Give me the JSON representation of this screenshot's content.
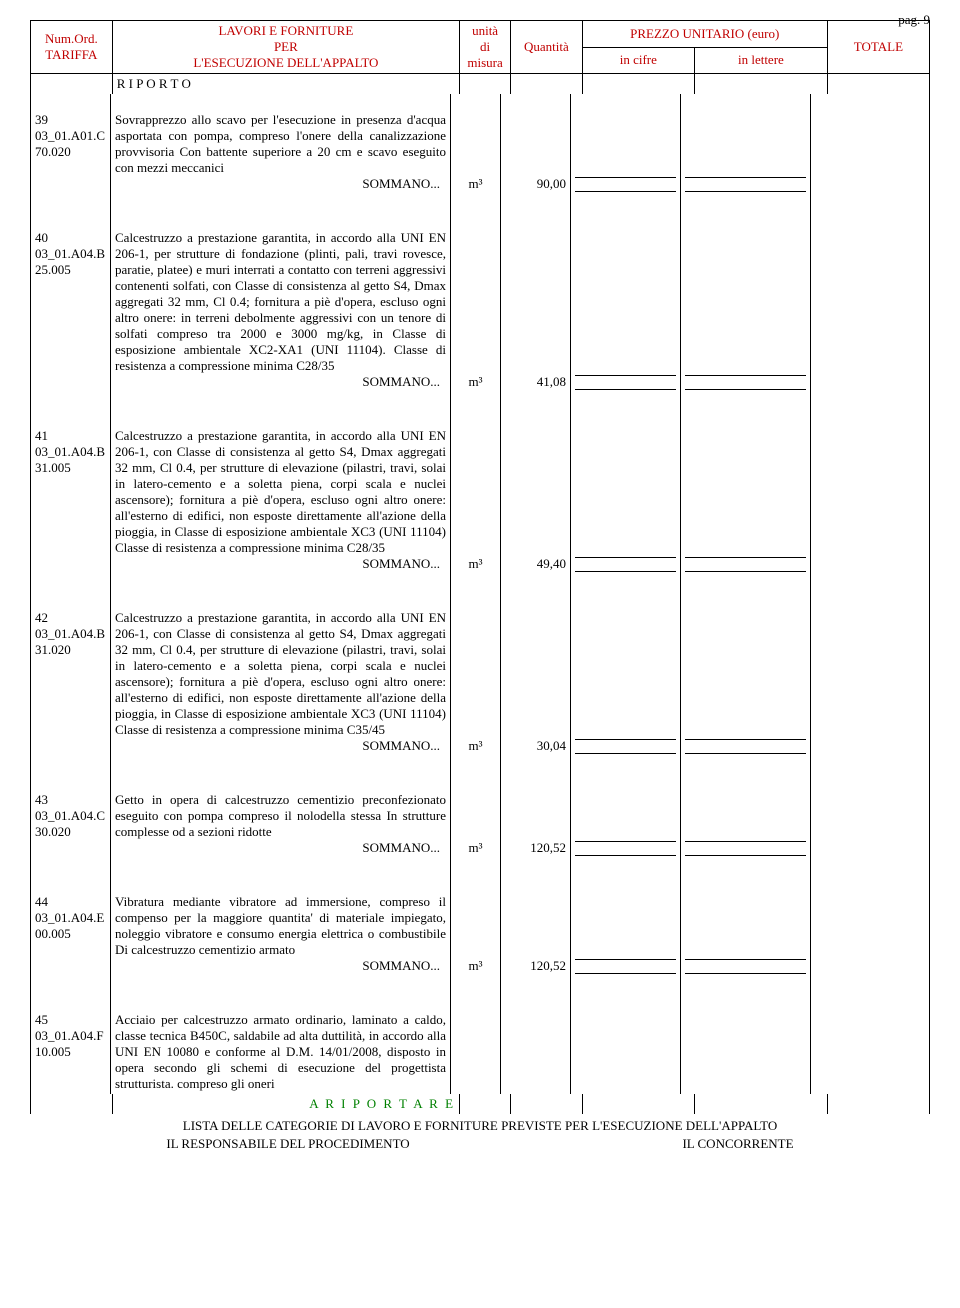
{
  "page_number": "pag. 9",
  "header": {
    "col1_line1": "Num.Ord.",
    "col1_line2": "TARIFFA",
    "col2_line1": "LAVORI E FORNITURE",
    "col2_line2": "PER",
    "col2_line3": "L'ESECUZIONE DELL'APPALTO",
    "col3_line1": "unità",
    "col3_line2": "di",
    "col3_line3": "misura",
    "col4": "Quantità",
    "col5_top": "PREZZO UNITARIO (euro)",
    "col5a": "in cifre",
    "col5b": "in lettere",
    "col6": "TOTALE"
  },
  "riporto": "R I P O R T O",
  "riportare": "A   R I P O R T A R E",
  "sommano_label": "SOMMANO...",
  "items": [
    {
      "num": "39",
      "code1": "03_01.A01.C",
      "code2": "70.020",
      "desc": "Sovrapprezzo allo scavo per l'esecuzione in presenza d'acqua asportata con pompa, compreso l'onere della canalizzazione provvisoria Con battente superiore a 20 cm e scavo eseguito con mezzi meccanici",
      "um": "m³",
      "qty": "90,00"
    },
    {
      "num": "40",
      "code1": "03_01.A04.B",
      "code2": "25.005",
      "desc": "Calcestruzzo a prestazione garantita, in accordo alla UNI EN 206-1, per strutture di fondazione (plinti, pali, travi rovesce, paratie, platee) e muri interrati a contatto con terreni aggressivi contenenti solfati, con Classe di consistenza al getto S4, Dmax aggregati 32 mm, Cl 0.4; fornitura a piè d'opera, escluso ogni altro onere: in terreni debolmente aggressivi con un tenore di solfati compreso tra 2000 e 3000 mg/kg, in Classe di esposizione ambientale XC2-XA1 (UNI 11104). Classe di resistenza a compressione minima C28/35",
      "um": "m³",
      "qty": "41,08"
    },
    {
      "num": "41",
      "code1": "03_01.A04.B",
      "code2": "31.005",
      "desc": "Calcestruzzo a prestazione garantita, in accordo alla UNI EN 206-1, con Classe di consistenza al getto S4, Dmax aggregati 32 mm, Cl 0.4, per strutture di elevazione (pilastri, travi, solai in latero-cemento e a soletta piena, corpi scala e nuclei ascensore); fornitura a piè d'opera, escluso ogni altro onere: all'esterno di edifici, non esposte direttamente all'azione della pioggia, in Classe di esposizione ambientale XC3 (UNI 11104) Classe di resistenza a compressione minima C28/35",
      "um": "m³",
      "qty": "49,40"
    },
    {
      "num": "42",
      "code1": "03_01.A04.B",
      "code2": "31.020",
      "desc": "Calcestruzzo a prestazione garantita, in accordo alla UNI EN 206-1, con Classe di consistenza al getto S4, Dmax aggregati 32 mm, Cl 0.4, per strutture di elevazione (pilastri, travi, solai in latero-cemento e a soletta piena, corpi scala e nuclei ascensore); fornitura a piè d'opera, escluso ogni altro onere: all'esterno di edifici, non esposte direttamente all'azione della pioggia, in Classe di esposizione ambientale XC3 (UNI 11104) Classe di resistenza a compressione minima C35/45",
      "um": "m³",
      "qty": "30,04"
    },
    {
      "num": "43",
      "code1": "03_01.A04.C",
      "code2": "30.020",
      "desc": "Getto in opera di calcestruzzo cementizio preconfezionato eseguito con pompa compreso il nolodella stessa In strutture complesse od a sezioni ridotte",
      "um": "m³",
      "qty": "120,52"
    },
    {
      "num": "44",
      "code1": "03_01.A04.E",
      "code2": "00.005",
      "desc": "Vibratura mediante vibratore ad immersione, compreso il compenso per la maggiore quantita' di materiale impiegato, noleggio vibratore e consumo energia elettrica o combustibile Di calcestruzzo cementizio armato",
      "um": "m³",
      "qty": "120,52"
    },
    {
      "num": "45",
      "code1": "03_01.A04.F",
      "code2": "10.005",
      "desc": "Acciaio per calcestruzzo armato ordinario, laminato a caldo, classe tecnica B450C, saldabile ad alta duttilità, in accordo alla UNI EN 10080 e conforme al D.M. 14/01/2008, disposto in opera secondo gli schemi di esecuzione del progettista strutturista. compreso gli oneri",
      "um": "",
      "qty": ""
    }
  ],
  "footer": {
    "line1": "LISTA DELLE CATEGORIE DI LAVORO E FORNITURE PREVISTE PER L'ESECUZIONE DELL'APPALTO",
    "role1": "IL RESPONSABILE DEL PROCEDIMENTO",
    "role2": "IL CONCORRENTE"
  }
}
